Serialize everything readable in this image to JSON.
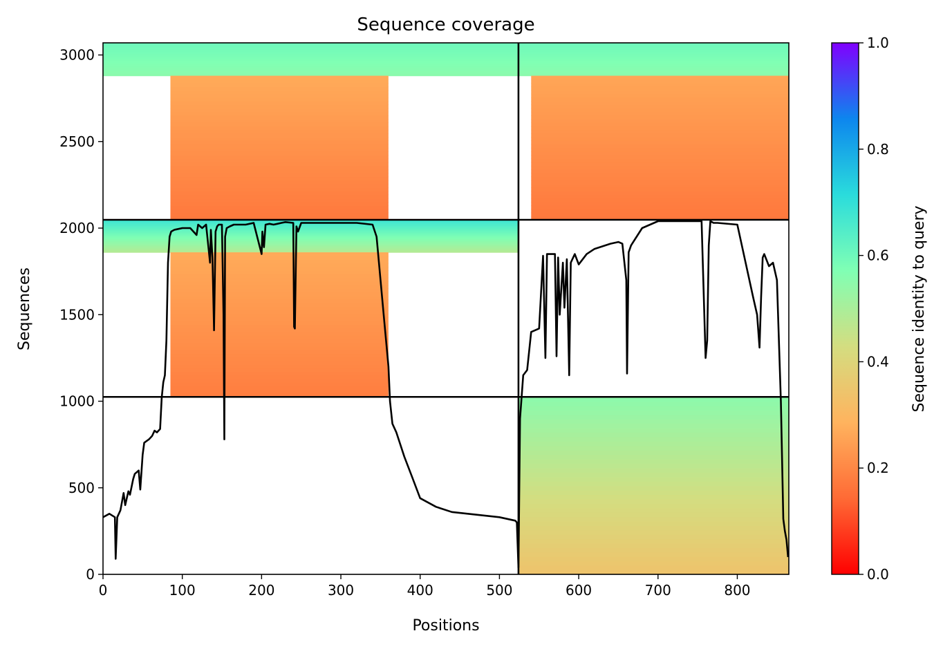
{
  "chart_data": {
    "type": "heatmap",
    "title": "Sequence coverage",
    "xlabel": "Positions",
    "ylabel": "Sequences",
    "xlim": [
      0,
      865
    ],
    "ylim": [
      0,
      3070
    ],
    "x_ticks": [
      0,
      100,
      200,
      300,
      400,
      500,
      600,
      700,
      800
    ],
    "y_ticks": [
      0,
      500,
      1000,
      1500,
      2000,
      2500,
      3000
    ],
    "grid": false,
    "colorbar": {
      "label": "Sequence identity to query",
      "range": [
        0,
        1
      ],
      "ticks": [
        0.0,
        0.2,
        0.4,
        0.6,
        0.8,
        1.0
      ],
      "tick_labels": [
        "0.0",
        "0.2",
        "0.4",
        "0.6",
        "0.8",
        "1.0"
      ],
      "colormap": "rainbow",
      "colors": [
        "#ff0000",
        "#ff6a35",
        "#ffb35e",
        "#d4dd80",
        "#80ffb4",
        "#2adcdc",
        "#0d86ee",
        "#8000ff"
      ]
    },
    "divider_lines": {
      "vertical_x": 524,
      "horizontal_y": [
        1025,
        2048
      ]
    },
    "blocks": [
      {
        "x": [
          0,
          524
        ],
        "y": [
          1025,
          2048
        ],
        "rows": [
          {
            "y": [
              1860,
              2048
            ],
            "x": [
              0,
              524
            ],
            "identity": [
              0.48,
              0.68
            ]
          },
          {
            "y": [
              1025,
              1860
            ],
            "x": [
              85,
              360
            ],
            "identity": [
              0.18,
              0.27
            ]
          }
        ]
      },
      {
        "x": [
          0,
          524
        ],
        "y": [
          2048,
          3070
        ],
        "rows": [
          {
            "y": [
              2880,
              3070
            ],
            "x": [
              0,
              524
            ],
            "identity": [
              0.55,
              0.6
            ]
          },
          {
            "y": [
              2048,
              2880
            ],
            "x": [
              85,
              360
            ],
            "identity": [
              0.17,
              0.27
            ]
          }
        ]
      },
      {
        "x": [
          524,
          865
        ],
        "y": [
          2048,
          3070
        ],
        "rows": [
          {
            "y": [
              2880,
              3070
            ],
            "x": [
              524,
              865
            ],
            "identity": [
              0.55,
              0.6
            ]
          },
          {
            "y": [
              2048,
              2880
            ],
            "x": [
              540,
              865
            ],
            "identity": [
              0.17,
              0.26
            ]
          }
        ]
      },
      {
        "x": [
          524,
          865
        ],
        "y": [
          0,
          1025
        ],
        "rows": [
          {
            "y": [
              0,
              1025
            ],
            "x": [
              524,
              865
            ],
            "identity": [
              0.34,
              0.55
            ]
          }
        ]
      }
    ],
    "coverage_line": {
      "name": "coverage",
      "color": "#000000",
      "x": [
        0,
        8,
        15,
        16,
        18,
        22,
        26,
        28,
        32,
        34,
        38,
        40,
        45,
        47,
        50,
        52,
        58,
        62,
        65,
        68,
        72,
        74,
        76,
        78,
        80,
        82,
        84,
        86,
        90,
        100,
        110,
        118,
        120,
        125,
        130,
        135,
        136,
        138,
        140,
        142,
        144,
        146,
        150,
        152,
        153,
        154,
        156,
        160,
        165,
        170,
        180,
        190,
        200,
        201,
        203,
        205,
        210,
        215,
        220,
        225,
        230,
        240,
        241,
        242,
        244,
        246,
        250,
        260,
        280,
        300,
        320,
        340,
        345,
        350,
        355,
        360,
        362,
        365,
        370,
        380,
        390,
        400,
        420,
        440,
        460,
        480,
        500,
        520,
        522,
        524,
        526,
        530,
        535,
        540,
        550,
        555,
        558,
        560,
        565,
        570,
        572,
        574,
        576,
        580,
        582,
        585,
        588,
        590,
        595,
        600,
        610,
        620,
        640,
        650,
        655,
        660,
        661,
        663,
        666,
        680,
        700,
        730,
        740,
        755,
        760,
        762,
        764,
        766,
        770,
        775,
        800,
        820,
        825,
        828,
        830,
        832,
        834,
        840,
        845,
        850,
        855,
        858,
        860,
        862,
        864
      ],
      "y": [
        330,
        350,
        330,
        90,
        330,
        370,
        470,
        400,
        480,
        460,
        550,
        580,
        600,
        490,
        690,
        760,
        780,
        800,
        830,
        820,
        840,
        1020,
        1110,
        1150,
        1350,
        1800,
        1950,
        1980,
        1990,
        2000,
        2000,
        1960,
        2020,
        2000,
        2020,
        1800,
        1990,
        1830,
        1410,
        1980,
        2010,
        2020,
        2020,
        1500,
        780,
        1950,
        2000,
        2010,
        2020,
        2020,
        2020,
        2030,
        1850,
        1980,
        1890,
        2020,
        2025,
        2020,
        2025,
        2030,
        2035,
        2030,
        1430,
        1420,
        2010,
        1980,
        2030,
        2030,
        2030,
        2030,
        2030,
        2020,
        1950,
        1700,
        1450,
        1200,
        1000,
        870,
        820,
        680,
        560,
        440,
        390,
        360,
        350,
        340,
        330,
        310,
        300,
        40,
        900,
        1150,
        1180,
        1400,
        1420,
        1840,
        1250,
        1850,
        1850,
        1850,
        1260,
        1830,
        1500,
        1800,
        1540,
        1820,
        1150,
        1800,
        1850,
        1790,
        1850,
        1880,
        1910,
        1920,
        1910,
        1700,
        1160,
        1860,
        1900,
        2000,
        2040,
        2040,
        2040,
        2040,
        1250,
        1350,
        1900,
        2040,
        2030,
        2030,
        2020,
        1600,
        1500,
        1310,
        1600,
        1830,
        1850,
        1780,
        1800,
        1700,
        1000,
        320,
        250,
        200,
        100
      ]
    }
  }
}
